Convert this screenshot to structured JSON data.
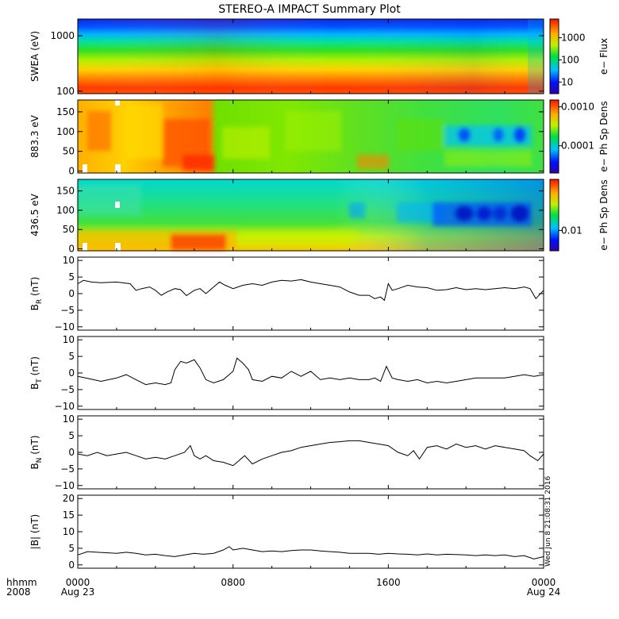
{
  "chart_data": {
    "title": "STEREO-A IMPACT Summary Plot",
    "x_axis": {
      "hhmm_label": "hhmm",
      "year_label": "2008",
      "range_hours": [
        0,
        24
      ],
      "ticks": [
        {
          "value": 0,
          "label": "0000",
          "sub": "Aug 23"
        },
        {
          "value": 8,
          "label": "0800",
          "sub": ""
        },
        {
          "value": 16,
          "label": "1600",
          "sub": ""
        },
        {
          "value": 24,
          "label": "0000",
          "sub": "Aug 24"
        }
      ]
    },
    "stamp": "Wed Jun 8 21:08:31 2016",
    "panels": [
      {
        "type": "heatmap",
        "ylabel": "SWEA (eV)",
        "yscale": "log",
        "ylim": [
          90,
          2000
        ],
        "yticks": [
          {
            "value": 100,
            "label": "100"
          },
          {
            "value": 1000,
            "label": "1000"
          }
        ],
        "colorbar": {
          "label": "e− Flux",
          "scale": "log",
          "range": [
            3,
            7000
          ],
          "ticks": [
            {
              "value": 10,
              "label": "10"
            },
            {
              "value": 100,
              "label": "100"
            },
            {
              "value": 1000,
              "label": "1000"
            }
          ]
        }
      },
      {
        "type": "heatmap",
        "ylabel": "883.3 eV",
        "ylim": [
          -5,
          180
        ],
        "yticks": [
          {
            "value": 0,
            "label": "0"
          },
          {
            "value": 50,
            "label": "50"
          },
          {
            "value": 100,
            "label": "100"
          },
          {
            "value": 150,
            "label": "150"
          }
        ],
        "colorbar": {
          "label": "e− Ph Sp Dens",
          "scale": "log",
          "range": [
            2e-05,
            0.0015
          ],
          "ticks": [
            {
              "value": 0.0001,
              "label": "0.0001"
            },
            {
              "value": 0.001,
              "label": "0.0010"
            }
          ]
        }
      },
      {
        "type": "heatmap",
        "ylabel": "436.5 eV",
        "ylim": [
          -5,
          180
        ],
        "yticks": [
          {
            "value": 0,
            "label": "0"
          },
          {
            "value": 50,
            "label": "50"
          },
          {
            "value": 100,
            "label": "100"
          },
          {
            "value": 150,
            "label": "150"
          }
        ],
        "colorbar": {
          "label": "e− Ph Sp Dens",
          "scale": "log",
          "range": [
            0.004,
            0.1
          ],
          "ticks": [
            {
              "value": 0.01,
              "label": "0.01"
            }
          ]
        }
      },
      {
        "type": "line",
        "ylabel_main": "B",
        "ylabel_sub": "R",
        "ylabel_unit": " (nT)",
        "ylim": [
          -11,
          11
        ],
        "yticks": [
          {
            "value": -10,
            "label": "−10"
          },
          {
            "value": -5,
            "label": "−5"
          },
          {
            "value": 0,
            "label": "0"
          },
          {
            "value": 5,
            "label": "5"
          },
          {
            "value": 10,
            "label": "10"
          }
        ],
        "points": [
          [
            0,
            3
          ],
          [
            0.3,
            4
          ],
          [
            0.7,
            3.5
          ],
          [
            1.2,
            3.3
          ],
          [
            2,
            3.5
          ],
          [
            2.7,
            3
          ],
          [
            3,
            1
          ],
          [
            3.3,
            1.5
          ],
          [
            3.7,
            2
          ],
          [
            4,
            1
          ],
          [
            4.3,
            -0.5
          ],
          [
            4.6,
            0.5
          ],
          [
            5,
            1.5
          ],
          [
            5.3,
            1.2
          ],
          [
            5.6,
            -0.6
          ],
          [
            6,
            1
          ],
          [
            6.3,
            1.5
          ],
          [
            6.6,
            0
          ],
          [
            7,
            2
          ],
          [
            7.3,
            3.5
          ],
          [
            7.6,
            2.5
          ],
          [
            8,
            1.5
          ],
          [
            8.5,
            2.5
          ],
          [
            9,
            3
          ],
          [
            9.5,
            2.5
          ],
          [
            10,
            3.5
          ],
          [
            10.5,
            4
          ],
          [
            11,
            3.8
          ],
          [
            11.5,
            4.2
          ],
          [
            12,
            3.5
          ],
          [
            12.5,
            3
          ],
          [
            13,
            2.5
          ],
          [
            13.5,
            2
          ],
          [
            14,
            0.5
          ],
          [
            14.5,
            -0.5
          ],
          [
            15,
            -0.5
          ],
          [
            15.3,
            -1.5
          ],
          [
            15.6,
            -1
          ],
          [
            15.8,
            -2
          ],
          [
            16,
            3
          ],
          [
            16.2,
            1
          ],
          [
            16.5,
            1.5
          ],
          [
            17,
            2.5
          ],
          [
            17.5,
            2
          ],
          [
            18,
            1.8
          ],
          [
            18.5,
            1
          ],
          [
            19,
            1.2
          ],
          [
            19.5,
            1.8
          ],
          [
            20,
            1.2
          ],
          [
            20.5,
            1.5
          ],
          [
            21,
            1.2
          ],
          [
            21.5,
            1.5
          ],
          [
            22,
            1.8
          ],
          [
            22.5,
            1.5
          ],
          [
            23,
            2
          ],
          [
            23.3,
            1.5
          ],
          [
            23.6,
            -1.5
          ],
          [
            24,
            1
          ]
        ]
      },
      {
        "type": "line",
        "ylabel_main": "B",
        "ylabel_sub": "T",
        "ylabel_unit": " (nT)",
        "ylim": [
          -11,
          11
        ],
        "yticks": [
          {
            "value": -10,
            "label": "−10"
          },
          {
            "value": -5,
            "label": "−5"
          },
          {
            "value": 0,
            "label": "0"
          },
          {
            "value": 5,
            "label": "5"
          },
          {
            "value": 10,
            "label": "10"
          }
        ],
        "points": [
          [
            0,
            -1
          ],
          [
            0.4,
            -1.5
          ],
          [
            0.8,
            -2
          ],
          [
            1.2,
            -2.5
          ],
          [
            1.6,
            -2
          ],
          [
            2,
            -1.5
          ],
          [
            2.5,
            -0.5
          ],
          [
            3,
            -2
          ],
          [
            3.5,
            -3.5
          ],
          [
            4,
            -3
          ],
          [
            4.5,
            -3.5
          ],
          [
            4.8,
            -3
          ],
          [
            5,
            1
          ],
          [
            5.3,
            3.5
          ],
          [
            5.6,
            3
          ],
          [
            6,
            4
          ],
          [
            6.3,
            1.5
          ],
          [
            6.6,
            -2
          ],
          [
            7,
            -3
          ],
          [
            7.5,
            -2
          ],
          [
            8,
            0.5
          ],
          [
            8.2,
            4.5
          ],
          [
            8.5,
            3
          ],
          [
            8.8,
            1
          ],
          [
            9,
            -2
          ],
          [
            9.5,
            -2.5
          ],
          [
            10,
            -1
          ],
          [
            10.5,
            -1.5
          ],
          [
            11,
            0.5
          ],
          [
            11.5,
            -1
          ],
          [
            12,
            0.5
          ],
          [
            12.5,
            -2
          ],
          [
            13,
            -1.5
          ],
          [
            13.5,
            -2
          ],
          [
            14,
            -1.5
          ],
          [
            14.5,
            -2
          ],
          [
            15,
            -2
          ],
          [
            15.3,
            -1.5
          ],
          [
            15.6,
            -2.5
          ],
          [
            15.9,
            2
          ],
          [
            16.2,
            -1.5
          ],
          [
            16.5,
            -2
          ],
          [
            17,
            -2.5
          ],
          [
            17.5,
            -2
          ],
          [
            18,
            -3
          ],
          [
            18.5,
            -2.5
          ],
          [
            19,
            -3
          ],
          [
            19.5,
            -2.5
          ],
          [
            20,
            -2
          ],
          [
            20.5,
            -1.5
          ],
          [
            21,
            -1.5
          ],
          [
            21.5,
            -1.5
          ],
          [
            22,
            -1.5
          ],
          [
            22.5,
            -1
          ],
          [
            23,
            -0.5
          ],
          [
            23.5,
            -1
          ],
          [
            24,
            -0.5
          ]
        ]
      },
      {
        "type": "line",
        "ylabel_main": "B",
        "ylabel_sub": "N",
        "ylabel_unit": " (nT)",
        "ylim": [
          -11,
          11
        ],
        "yticks": [
          {
            "value": -10,
            "label": "−10"
          },
          {
            "value": -5,
            "label": "−5"
          },
          {
            "value": 0,
            "label": "0"
          },
          {
            "value": 5,
            "label": "5"
          },
          {
            "value": 10,
            "label": "10"
          }
        ],
        "points": [
          [
            0,
            -0.5
          ],
          [
            0.5,
            -1
          ],
          [
            1,
            0
          ],
          [
            1.5,
            -1
          ],
          [
            2,
            -0.5
          ],
          [
            2.5,
            0
          ],
          [
            3,
            -1
          ],
          [
            3.5,
            -2
          ],
          [
            4,
            -1.5
          ],
          [
            4.5,
            -2
          ],
          [
            5,
            -1
          ],
          [
            5.5,
            0
          ],
          [
            5.8,
            2
          ],
          [
            6,
            -1
          ],
          [
            6.3,
            -2
          ],
          [
            6.6,
            -1
          ],
          [
            7,
            -2.5
          ],
          [
            7.5,
            -3
          ],
          [
            8,
            -4
          ],
          [
            8.3,
            -2.5
          ],
          [
            8.6,
            -1
          ],
          [
            9,
            -3.5
          ],
          [
            9.5,
            -2
          ],
          [
            10,
            -1
          ],
          [
            10.5,
            0
          ],
          [
            11,
            0.5
          ],
          [
            11.5,
            1.5
          ],
          [
            12,
            2
          ],
          [
            12.5,
            2.5
          ],
          [
            13,
            3
          ],
          [
            13.5,
            3.2
          ],
          [
            14,
            3.5
          ],
          [
            14.5,
            3.5
          ],
          [
            15,
            3
          ],
          [
            15.5,
            2.5
          ],
          [
            16,
            2
          ],
          [
            16.5,
            0
          ],
          [
            17,
            -1
          ],
          [
            17.3,
            0.5
          ],
          [
            17.6,
            -2
          ],
          [
            18,
            1.5
          ],
          [
            18.5,
            2
          ],
          [
            19,
            1
          ],
          [
            19.5,
            2.5
          ],
          [
            20,
            1.5
          ],
          [
            20.5,
            2
          ],
          [
            21,
            1
          ],
          [
            21.5,
            2
          ],
          [
            22,
            1.5
          ],
          [
            22.5,
            1
          ],
          [
            23,
            0.5
          ],
          [
            23.3,
            -1
          ],
          [
            23.7,
            -2.5
          ],
          [
            24,
            -0.5
          ]
        ]
      },
      {
        "type": "line",
        "ylabel_main": "|B|",
        "ylabel_sub": "",
        "ylabel_unit": " (nT)",
        "ylim": [
          -1,
          21
        ],
        "yticks": [
          {
            "value": 0,
            "label": "0"
          },
          {
            "value": 5,
            "label": "5"
          },
          {
            "value": 10,
            "label": "10"
          },
          {
            "value": 15,
            "label": "15"
          },
          {
            "value": 20,
            "label": "20"
          }
        ],
        "points": [
          [
            0,
            3
          ],
          [
            0.5,
            4
          ],
          [
            1,
            3.8
          ],
          [
            2,
            3.5
          ],
          [
            2.5,
            3.8
          ],
          [
            3,
            3.5
          ],
          [
            3.5,
            3
          ],
          [
            4,
            3.2
          ],
          [
            4.5,
            2.8
          ],
          [
            5,
            2.5
          ],
          [
            5.5,
            3
          ],
          [
            6,
            3.5
          ],
          [
            6.5,
            3.2
          ],
          [
            7,
            3.5
          ],
          [
            7.5,
            4.5
          ],
          [
            7.8,
            5.5
          ],
          [
            8,
            4.5
          ],
          [
            8.5,
            5
          ],
          [
            9,
            4.5
          ],
          [
            9.5,
            4
          ],
          [
            10,
            4.2
          ],
          [
            10.5,
            4
          ],
          [
            11,
            4.3
          ],
          [
            11.5,
            4.5
          ],
          [
            12,
            4.5
          ],
          [
            12.5,
            4.2
          ],
          [
            13,
            4
          ],
          [
            13.5,
            3.8
          ],
          [
            14,
            3.5
          ],
          [
            15,
            3.5
          ],
          [
            15.5,
            3.2
          ],
          [
            16,
            3.5
          ],
          [
            16.5,
            3.3
          ],
          [
            17,
            3.2
          ],
          [
            17.5,
            3
          ],
          [
            18,
            3.3
          ],
          [
            18.5,
            3
          ],
          [
            19,
            3.2
          ],
          [
            20,
            3
          ],
          [
            20.5,
            2.8
          ],
          [
            21,
            3
          ],
          [
            21.5,
            2.8
          ],
          [
            22,
            3
          ],
          [
            22.5,
            2.5
          ],
          [
            23,
            2.8
          ],
          [
            23.5,
            1.8
          ],
          [
            24,
            2.5
          ]
        ]
      }
    ]
  }
}
